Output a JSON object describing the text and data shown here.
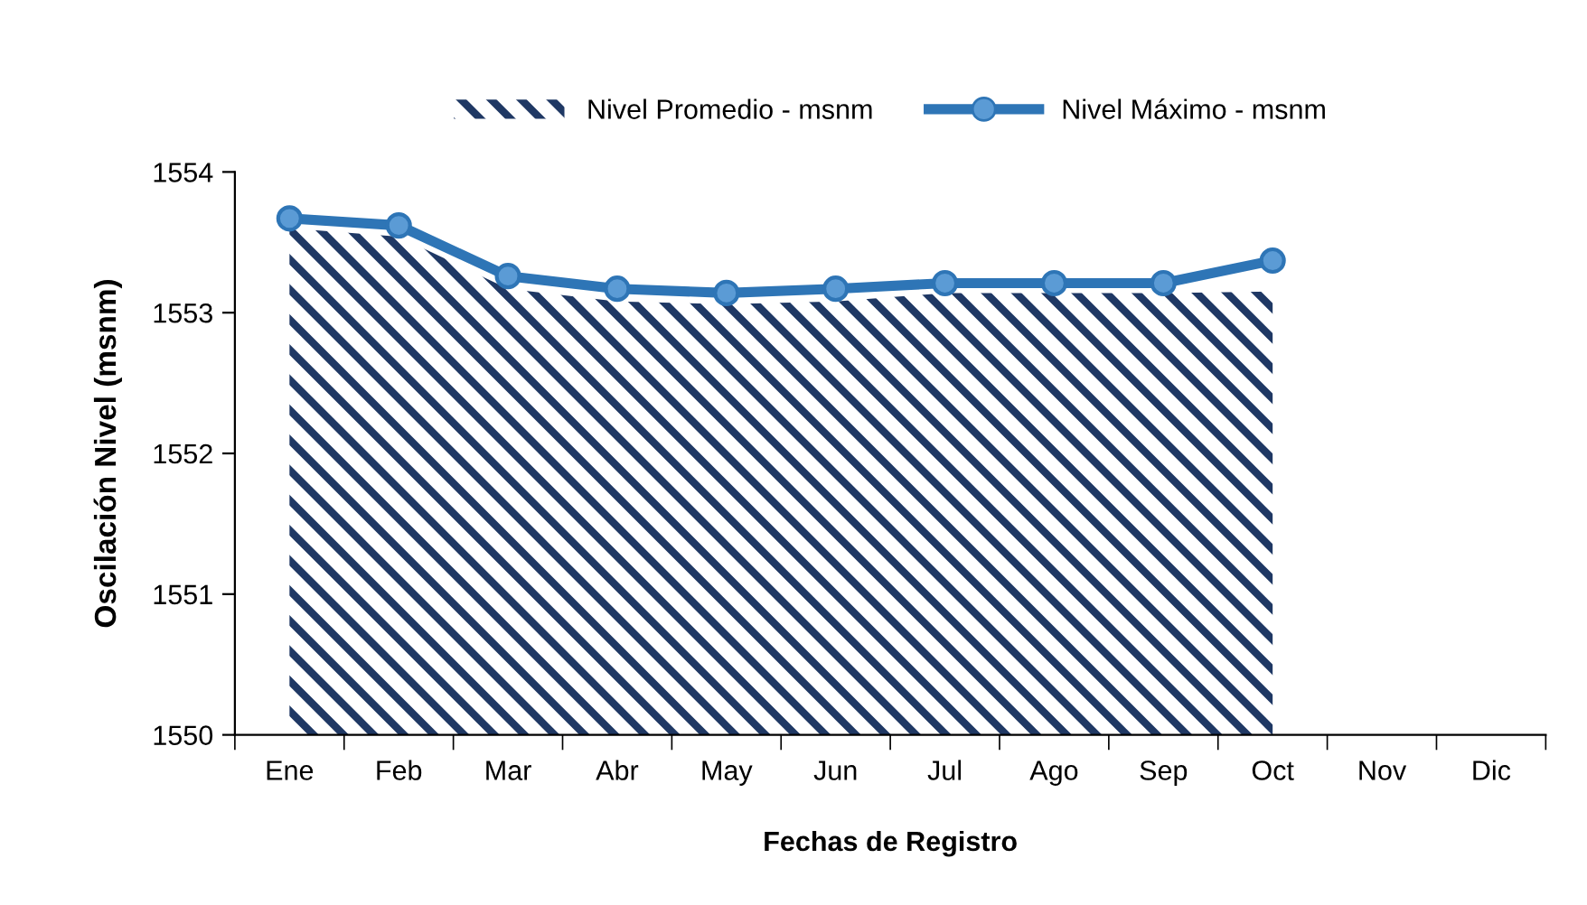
{
  "chart_data": {
    "type": "line",
    "xlabel": "Fechas de Registro",
    "ylabel": "Oscilación Nivel (msnm)",
    "categories": [
      "Ene",
      "Feb",
      "Mar",
      "Abr",
      "May",
      "Jun",
      "Jul",
      "Ago",
      "Sep",
      "Oct",
      "Nov",
      "Dic"
    ],
    "series": [
      {
        "name": "Nivel Promedio - msnm",
        "type": "area",
        "color": "#1f3864",
        "values": [
          1553.6,
          1553.54,
          1553.17,
          1553.08,
          1553.06,
          1553.08,
          1553.14,
          1553.14,
          1553.14,
          1553.15,
          null,
          null
        ]
      },
      {
        "name": "Nivel Máximo - msnm",
        "color": "#2e75b6",
        "marker": "circle",
        "values": [
          1553.67,
          1553.62,
          1553.26,
          1553.17,
          1553.14,
          1553.17,
          1553.21,
          1553.21,
          1553.21,
          1553.37,
          null,
          null
        ]
      }
    ],
    "ylim": [
      1550,
      1554
    ],
    "yticks": [
      1550,
      1551,
      1552,
      1553,
      1554
    ],
    "grid": false,
    "legend": "top"
  }
}
